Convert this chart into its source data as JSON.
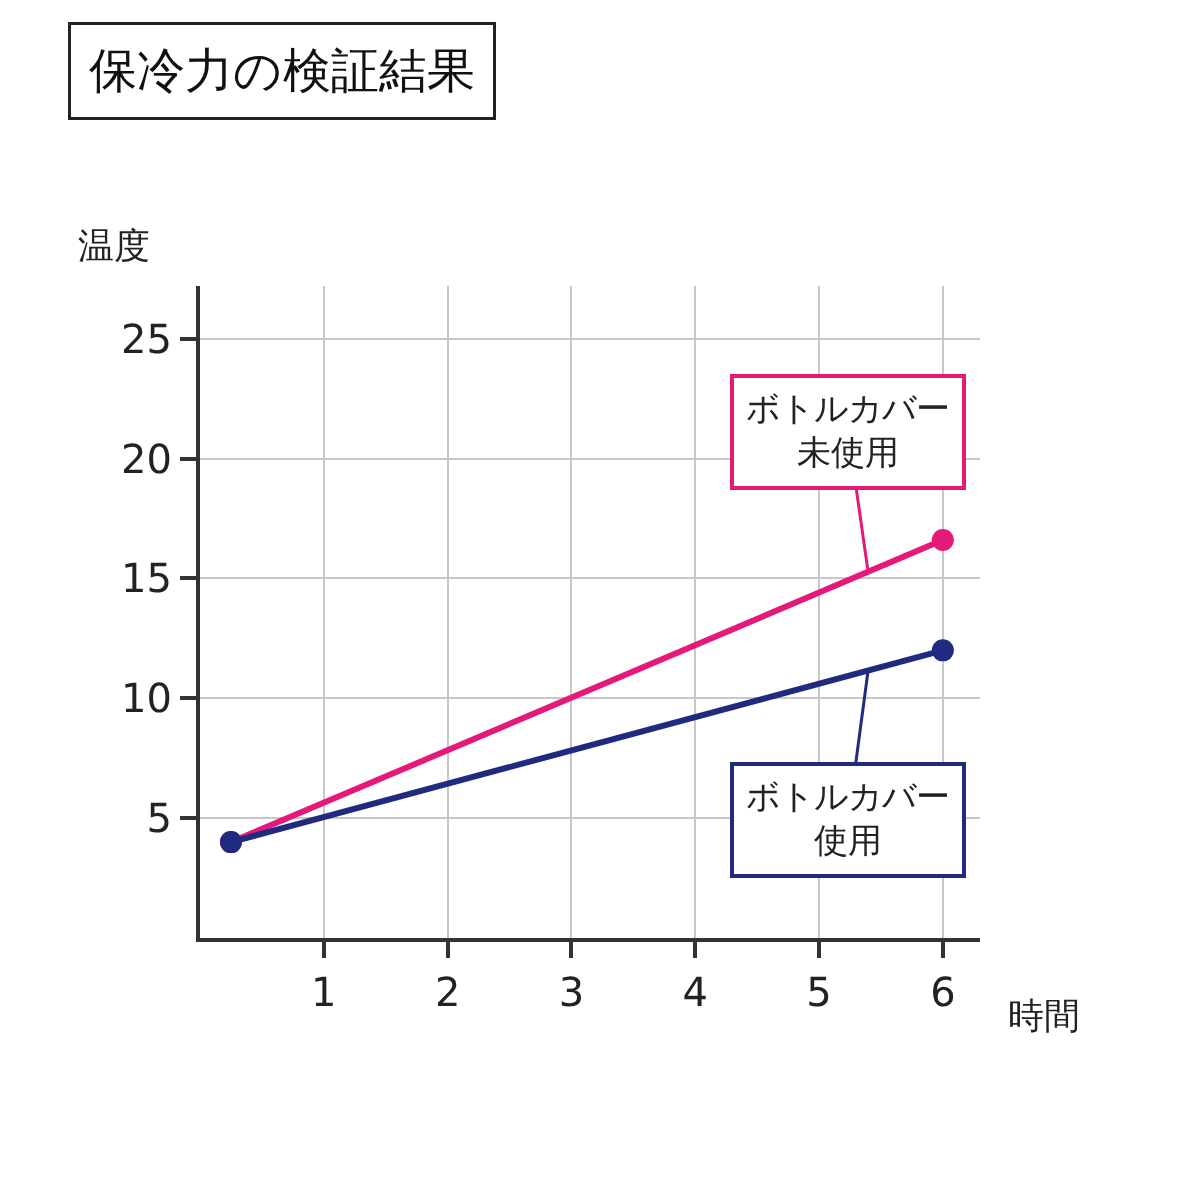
{
  "chart_data": {
    "type": "line",
    "title": "保冷力の検証結果",
    "xlabel": "時間",
    "ylabel": "温度",
    "x": [
      0.25,
      6
    ],
    "series": [
      {
        "name": "ボトルカバー未使用",
        "color": "#e5197a",
        "values": [
          4,
          16.6
        ]
      },
      {
        "name": "ボトルカバー使用",
        "color": "#1f2a80",
        "values": [
          4,
          12
        ]
      }
    ],
    "xlim": [
      0,
      6.3
    ],
    "xticks": [
      1,
      2,
      3,
      4,
      5,
      6
    ],
    "ylim": [
      0,
      27.2
    ],
    "yticks": [
      5,
      10,
      15,
      20,
      25
    ],
    "grid": true,
    "legend": false,
    "marker": "circle",
    "line_style": "solid"
  }
}
